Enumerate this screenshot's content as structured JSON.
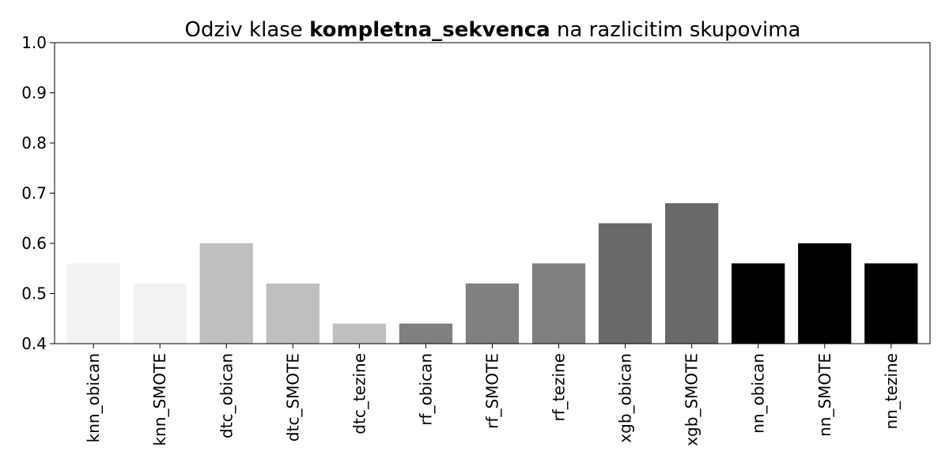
{
  "chart_data": {
    "type": "bar",
    "title_prefix": "Odziv klase ",
    "title_bold": "kompletna_sekvenca",
    "title_suffix": " na razlicitim skupovima",
    "xlabel": "",
    "ylabel": "",
    "ylim": [
      0.4,
      1.0
    ],
    "yticks": [
      "0.4",
      "0.5",
      "0.6",
      "0.7",
      "0.8",
      "0.9",
      "1.0"
    ],
    "grid": false,
    "legend": "none",
    "categories": [
      "knn_obican",
      "knn_SMOTE",
      "dtc_obican",
      "dtc_SMOTE",
      "dtc_tezine",
      "rf_obican",
      "rf_SMOTE",
      "rf_tezine",
      "xgb_obican",
      "xgb_SMOTE",
      "nn_obican",
      "nn_SMOTE",
      "nn_tezine"
    ],
    "values": [
      0.56,
      0.52,
      0.6,
      0.52,
      0.44,
      0.44,
      0.52,
      0.56,
      0.64,
      0.68,
      0.56,
      0.6,
      0.56
    ],
    "colors": [
      "#f2f2f2",
      "#f2f2f2",
      "#bfbfbf",
      "#bfbfbf",
      "#bfbfbf",
      "#808080",
      "#808080",
      "#808080",
      "#696969",
      "#696969",
      "#000000",
      "#000000",
      "#000000"
    ]
  }
}
